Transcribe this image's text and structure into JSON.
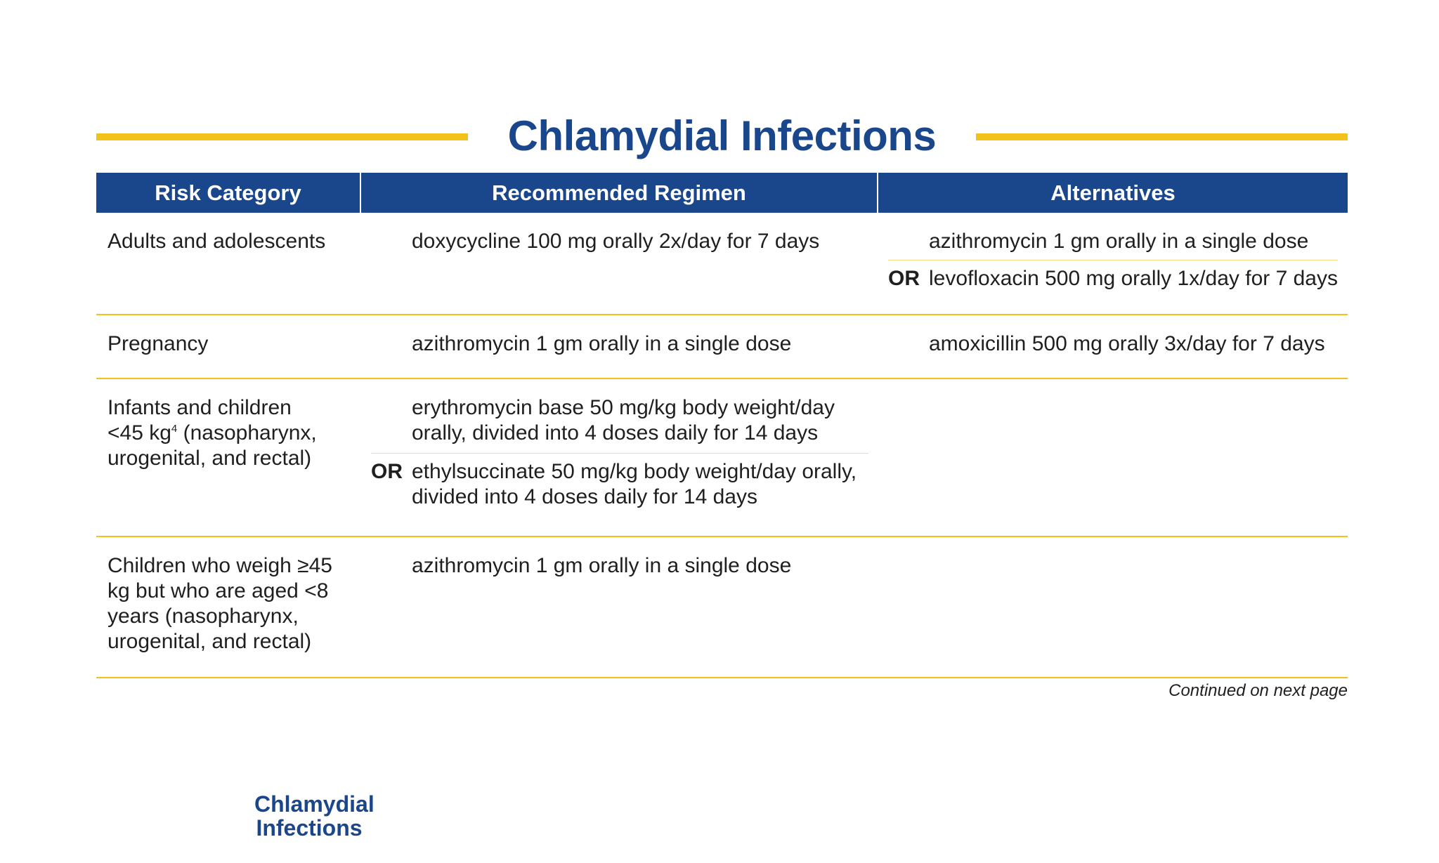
{
  "title": "Chlamydial Infections",
  "colors": {
    "brand_blue": "#1a468c",
    "accent_yellow": "#f2c21b"
  },
  "table": {
    "headers": [
      "Risk Category",
      "Recommended Regimen",
      "Alternatives"
    ],
    "rows": [
      {
        "risk": "Adults and adolescents",
        "recommended": [
          {
            "or": "",
            "text": "doxycycline 100 mg orally 2x/day for 7 days"
          }
        ],
        "alternatives": [
          {
            "or": "",
            "text": "azithromycin 1 gm orally in a single dose"
          },
          {
            "or": "OR",
            "text": "levofloxacin 500 mg orally 1x/day for 7 days"
          }
        ]
      },
      {
        "risk": "Pregnancy",
        "recommended": [
          {
            "or": "",
            "text": "azithromycin 1 gm orally in a single dose"
          }
        ],
        "alternatives": [
          {
            "or": "",
            "text": "amoxicillin 500 mg orally 3x/day for 7 days"
          }
        ]
      },
      {
        "risk_line1": "Infants and children",
        "risk_line2_pre": "<45 kg",
        "risk_sup": "4",
        "risk_line2_post": " (nasopharynx,",
        "risk_line3": "urogenital, and rectal)",
        "recommended": [
          {
            "or": "",
            "text": "erythromycin base 50 mg/kg body weight/day orally, divided into 4 doses daily for 14 days"
          },
          {
            "or": "OR",
            "text": "ethylsuccinate 50 mg/kg body weight/day orally, divided into 4 doses daily for 14 days"
          }
        ],
        "alternatives": []
      },
      {
        "risk": "Children who weigh ≥45 kg but who are aged <8 years (nasopharynx, urogenital, and rectal)",
        "recommended": [
          {
            "or": "",
            "text": "azithromycin 1 gm orally in a single dose"
          }
        ],
        "alternatives": []
      }
    ]
  },
  "continued_note": "Continued on next page",
  "footer_tag": {
    "line1": "Chlamydial",
    "line2": "Infections"
  }
}
